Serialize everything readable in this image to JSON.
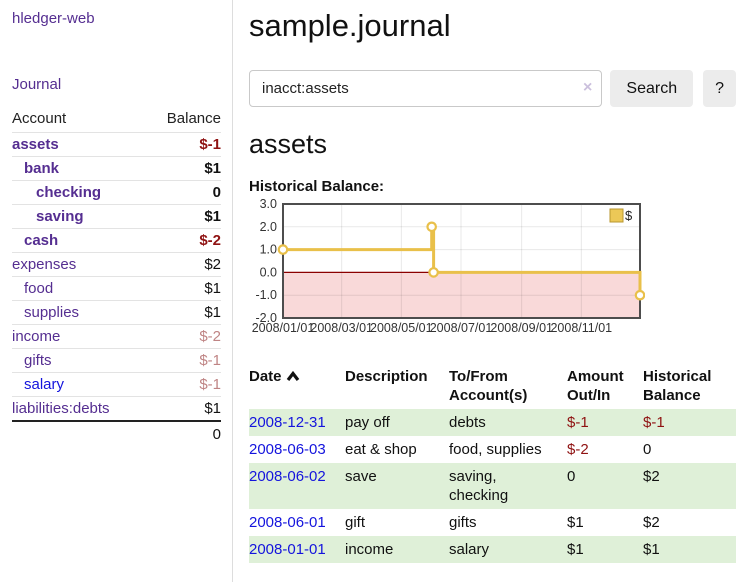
{
  "brand": "hledger-web",
  "nav": {
    "journal": "Journal"
  },
  "sidebar": {
    "col_account": "Account",
    "col_balance": "Balance",
    "accounts": [
      {
        "name": "assets",
        "indent": 0,
        "bold": true,
        "link": "purple",
        "balance": "$-1",
        "bstyle": "negstrong"
      },
      {
        "name": "bank",
        "indent": 1,
        "bold": true,
        "link": "purple",
        "balance": "$1",
        "bstyle": "plain"
      },
      {
        "name": "checking",
        "indent": 2,
        "bold": true,
        "link": "purple",
        "balance": "0",
        "bstyle": "plain"
      },
      {
        "name": "saving",
        "indent": 2,
        "bold": true,
        "link": "purple",
        "balance": "$1",
        "bstyle": "plain"
      },
      {
        "name": "cash",
        "indent": 1,
        "bold": true,
        "link": "purple",
        "balance": "$-2",
        "bstyle": "negstrong"
      },
      {
        "name": "expenses",
        "indent": 0,
        "bold": false,
        "link": "purple",
        "balance": "$2",
        "bstyle": "plain"
      },
      {
        "name": "food",
        "indent": 1,
        "bold": false,
        "link": "purple",
        "balance": "$1",
        "bstyle": "plain"
      },
      {
        "name": "supplies",
        "indent": 1,
        "bold": false,
        "link": "purple",
        "balance": "$1",
        "bstyle": "plain"
      },
      {
        "name": "income",
        "indent": 0,
        "bold": false,
        "link": "purple",
        "balance": "$-2",
        "bstyle": "negmuted"
      },
      {
        "name": "gifts",
        "indent": 1,
        "bold": false,
        "link": "purple",
        "balance": "$-1",
        "bstyle": "negmuted"
      },
      {
        "name": "salary",
        "indent": 1,
        "bold": false,
        "link": "blue",
        "balance": "$-1",
        "bstyle": "negmuted"
      },
      {
        "name": "liabilities:debts",
        "indent": 0,
        "bold": false,
        "link": "purple",
        "balance": "$1",
        "bstyle": "plain"
      }
    ],
    "total": "0"
  },
  "main": {
    "title": "sample.journal",
    "search": {
      "value": "inacct:assets",
      "clear": "×",
      "button_label": "Search",
      "help_label": "?"
    },
    "account_heading": "assets",
    "chart_title": "Historical Balance:"
  },
  "chart_data": {
    "type": "line",
    "step": true,
    "title": "Historical Balance",
    "series": [
      {
        "name": "$",
        "points": [
          [
            "2008-01-01",
            1
          ],
          [
            "2008-06-01",
            2
          ],
          [
            "2008-06-03",
            0
          ],
          [
            "2008-12-31",
            -1
          ]
        ]
      }
    ],
    "x_range": [
      "2008-01-01",
      "2008-12-31"
    ],
    "ylim": [
      -2,
      3
    ],
    "y_ticks": [
      3.0,
      2.0,
      1.0,
      0.0,
      -1.0,
      -2.0
    ],
    "x_tick_dates": [
      "2008-01-01",
      "2008-03-01",
      "2008-05-01",
      "2008-07-01",
      "2008-09-01",
      "2008-11-01"
    ],
    "x_tick_labels": [
      "2008/01/01",
      "2008/03/01",
      "2008/05/01",
      "2008/07/01",
      "2008/09/01",
      "2008/11/01"
    ],
    "legend": {
      "label": "$",
      "position": "top-right",
      "color": "#ecc857",
      "border": "#b9972f"
    },
    "line_color": "#e9c04a",
    "marker": "open-circle",
    "negative_region_color": "#f9d9d9",
    "zero_line_color": "#8b0000",
    "grid": true
  },
  "register": {
    "headers": {
      "date": "Date",
      "description": "Description",
      "tofrom": "To/From Account(s)",
      "amount": "Amount Out/In",
      "historical": "Historical Balance"
    },
    "sort": {
      "column": "date",
      "direction": "ascending"
    },
    "rows": [
      {
        "date": "2008-12-31",
        "description": "pay off",
        "accounts": "debts",
        "amount": "$-1",
        "amount_neg": true,
        "historical": "$-1",
        "historical_neg": true
      },
      {
        "date": "2008-06-03",
        "description": "eat & shop",
        "accounts": "food, supplies",
        "amount": "$-2",
        "amount_neg": true,
        "historical": "0",
        "historical_neg": false
      },
      {
        "date": "2008-06-02",
        "description": "save",
        "accounts": "saving, checking",
        "amount": "0",
        "amount_neg": false,
        "historical": "$2",
        "historical_neg": false
      },
      {
        "date": "2008-06-01",
        "description": "gift",
        "accounts": "gifts",
        "amount": "$1",
        "amount_neg": false,
        "historical": "$2",
        "historical_neg": false
      },
      {
        "date": "2008-01-01",
        "description": "income",
        "accounts": "salary",
        "amount": "$1",
        "amount_neg": false,
        "historical": "$1",
        "historical_neg": false
      }
    ]
  }
}
